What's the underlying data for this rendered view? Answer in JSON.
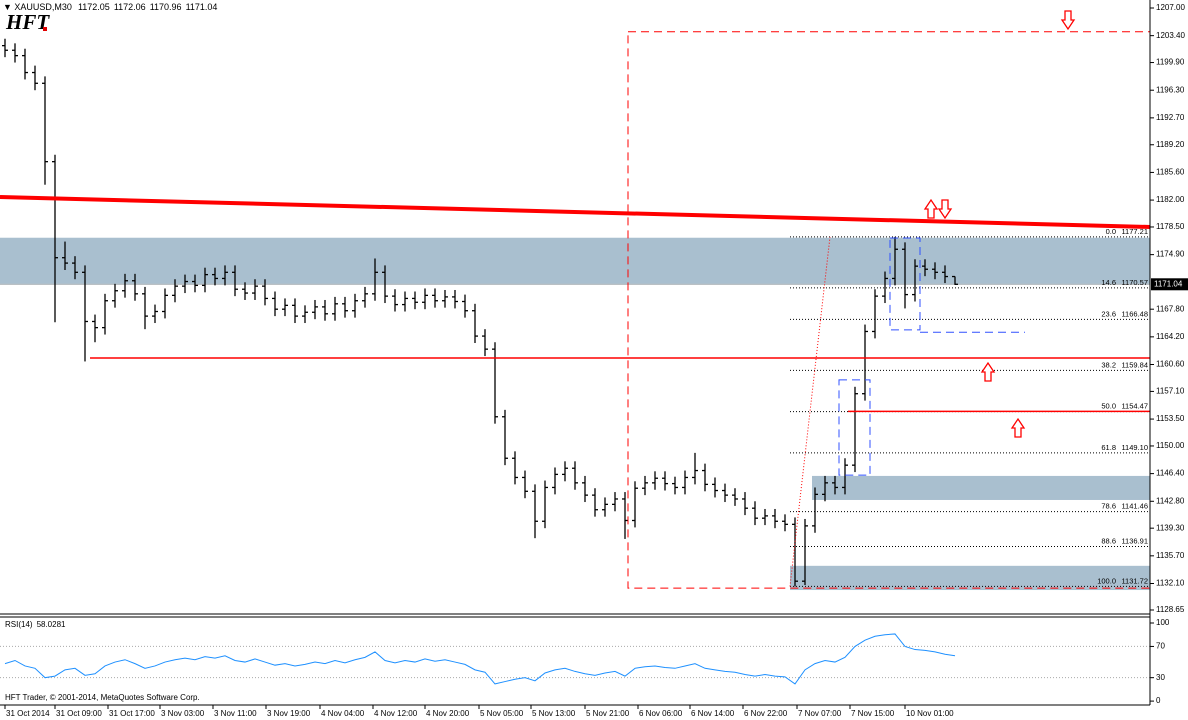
{
  "chart_data": {
    "type": "ohlc",
    "symbol": "XAUUSD,M30",
    "logo": "HFT",
    "copyright": "HFT Trader, © 2001-2014, MetaQuotes Software Corp.",
    "color": "#000000",
    "open": [
      1202.1,
      1201.5,
      1200.8,
      1198.6,
      1197.2,
      1187.0,
      1174.5,
      1173.8,
      1172.6,
      1166.2,
      1165.4,
      1168.9,
      1170.2,
      1171.5,
      1169.8,
      1166.9,
      1167.5,
      1169.6,
      1170.8,
      1171.4,
      1170.9,
      1172.3,
      1171.8,
      1172.6,
      1170.4,
      1169.9,
      1170.8,
      1169.2,
      1167.8,
      1168.3,
      1166.9,
      1167.4,
      1168.1,
      1167.2,
      1168.5,
      1167.6,
      1168.9,
      1169.8,
      1172.6,
      1169.5,
      1168.4,
      1169.2,
      1168.7,
      1169.6,
      1168.9,
      1169.4,
      1168.8,
      1167.6,
      1164.3,
      1162.6,
      1153.8,
      1148.4,
      1145.9,
      1144.1,
      1140.2,
      1144.6,
      1146.3,
      1147.1,
      1145.2,
      1143.6,
      1141.7,
      1142.4,
      1143.1,
      1140.3,
      1144.5,
      1145.2,
      1145.8,
      1145.1,
      1144.6,
      1145.9,
      1146.8,
      1145.0,
      1144.2,
      1143.6,
      1143.1,
      1141.9,
      1140.6,
      1140.9,
      1140.2,
      1139.8,
      1132.4,
      1139.6,
      1143.7,
      1145.2,
      1144.6,
      1147.5,
      1156.8,
      1164.9,
      1169.5,
      1171.8,
      1175.6,
      1169.7,
      1173.4,
      1173.0,
      1172.6,
      1172.05
    ],
    "high": [
      1203.0,
      1202.4,
      1201.7,
      1199.5,
      1198.1,
      1187.9,
      1176.6,
      1174.7,
      1173.5,
      1167.1,
      1169.8,
      1171.1,
      1172.4,
      1172.4,
      1170.7,
      1168.4,
      1170.5,
      1171.7,
      1172.3,
      1172.3,
      1173.2,
      1173.2,
      1173.5,
      1173.5,
      1171.3,
      1171.7,
      1171.7,
      1170.1,
      1169.2,
      1169.2,
      1168.3,
      1169.0,
      1169.0,
      1169.4,
      1169.4,
      1169.8,
      1170.7,
      1174.4,
      1173.5,
      1170.4,
      1170.1,
      1170.1,
      1170.5,
      1170.5,
      1170.3,
      1170.3,
      1169.7,
      1168.5,
      1165.2,
      1163.5,
      1154.7,
      1149.3,
      1146.8,
      1145.0,
      1145.5,
      1147.2,
      1148.0,
      1148.0,
      1146.1,
      1144.5,
      1143.3,
      1144.0,
      1144.0,
      1145.4,
      1146.1,
      1146.7,
      1146.7,
      1146.0,
      1146.8,
      1149.1,
      1147.7,
      1145.9,
      1145.1,
      1144.5,
      1144.0,
      1142.8,
      1141.8,
      1141.8,
      1141.1,
      1140.7,
      1140.5,
      1144.6,
      1146.1,
      1146.1,
      1148.4,
      1157.7,
      1165.8,
      1170.4,
      1172.7,
      1177.21,
      1176.5,
      1174.3,
      1174.3,
      1173.9,
      1173.5,
      1172.06
    ],
    "low": [
      1200.6,
      1199.9,
      1197.7,
      1196.3,
      1184.0,
      1166.1,
      1172.9,
      1171.7,
      1161.0,
      1163.5,
      1164.5,
      1168.0,
      1169.3,
      1168.9,
      1165.2,
      1166.0,
      1166.6,
      1168.7,
      1169.9,
      1170.0,
      1170.0,
      1170.9,
      1170.9,
      1169.5,
      1169.0,
      1169.0,
      1168.3,
      1166.9,
      1166.9,
      1166.0,
      1166.0,
      1166.5,
      1166.3,
      1166.3,
      1166.7,
      1166.7,
      1168.0,
      1168.9,
      1168.6,
      1167.5,
      1167.5,
      1167.8,
      1167.8,
      1168.0,
      1168.0,
      1167.9,
      1166.7,
      1163.4,
      1161.7,
      1152.9,
      1147.5,
      1145.0,
      1143.2,
      1138.0,
      1139.3,
      1143.7,
      1145.4,
      1144.3,
      1142.7,
      1140.8,
      1140.8,
      1141.5,
      1137.9,
      1139.4,
      1143.6,
      1144.3,
      1144.2,
      1143.7,
      1143.7,
      1145.0,
      1144.1,
      1143.3,
      1142.7,
      1142.2,
      1141.0,
      1139.7,
      1139.7,
      1139.3,
      1138.9,
      1131.72,
      1131.9,
      1138.7,
      1142.8,
      1143.7,
      1143.7,
      1146.6,
      1155.9,
      1164.0,
      1168.6,
      1170.9,
      1167.9,
      1168.8,
      1172.1,
      1171.7,
      1171.2,
      1170.96
    ],
    "close": [
      1201.5,
      1200.8,
      1198.6,
      1197.2,
      1187.0,
      1174.5,
      1173.8,
      1172.6,
      1166.2,
      1165.4,
      1168.9,
      1170.2,
      1171.5,
      1169.8,
      1166.9,
      1167.5,
      1169.6,
      1170.8,
      1171.4,
      1170.9,
      1172.3,
      1171.8,
      1172.6,
      1170.4,
      1169.9,
      1170.8,
      1169.2,
      1167.8,
      1168.3,
      1166.9,
      1167.4,
      1168.1,
      1167.2,
      1168.5,
      1167.6,
      1168.9,
      1169.8,
      1172.6,
      1169.5,
      1168.4,
      1169.2,
      1168.7,
      1169.6,
      1168.9,
      1169.4,
      1168.8,
      1167.6,
      1164.3,
      1162.6,
      1153.8,
      1148.4,
      1145.9,
      1144.1,
      1140.2,
      1144.6,
      1146.3,
      1147.1,
      1145.2,
      1143.6,
      1141.7,
      1142.4,
      1143.1,
      1140.3,
      1144.5,
      1145.2,
      1145.8,
      1145.1,
      1144.6,
      1145.9,
      1146.8,
      1145.0,
      1144.2,
      1143.6,
      1143.1,
      1141.9,
      1140.6,
      1140.9,
      1140.2,
      1139.8,
      1132.4,
      1139.6,
      1143.7,
      1145.2,
      1144.6,
      1147.5,
      1156.8,
      1164.9,
      1169.5,
      1171.8,
      1175.6,
      1169.7,
      1173.4,
      1173.0,
      1172.6,
      1172.05,
      1171.04
    ],
    "ylim": [
      1128.13,
      1208.04
    ],
    "yticks": [
      {
        "value": 1207,
        "label": "1207.00"
      },
      {
        "value": 1203.4,
        "label": "1203.40"
      },
      {
        "value": 1199.9,
        "label": "1199.90"
      },
      {
        "value": 1196.3,
        "label": "1196.30"
      },
      {
        "value": 1192.7,
        "label": "1192.70"
      },
      {
        "value": 1189.2,
        "label": "1189.20"
      },
      {
        "value": 1185.6,
        "label": "1185.60"
      },
      {
        "value": 1182,
        "label": "1182.00"
      },
      {
        "value": 1178.5,
        "label": "1178.50"
      },
      {
        "value": 1174.9,
        "label": "1174.90"
      },
      {
        "value": 1167.8,
        "label": "1167.80"
      },
      {
        "value": 1164.2,
        "label": "1164.20"
      },
      {
        "value": 1160.6,
        "label": "1160.60"
      },
      {
        "value": 1157.1,
        "label": "1157.10"
      },
      {
        "value": 1153.5,
        "label": "1153.50"
      },
      {
        "value": 1150,
        "label": "1150.00"
      },
      {
        "value": 1146.4,
        "label": "1146.40"
      },
      {
        "value": 1142.8,
        "label": "1142.80"
      },
      {
        "value": 1139.3,
        "label": "1139.30"
      },
      {
        "value": 1135.7,
        "label": "1135.70"
      },
      {
        "value": 1132.1,
        "label": "1132.10"
      },
      {
        "value": 1128.65,
        "label": "1128.65"
      }
    ],
    "xticks": [
      {
        "value": 0,
        "label": "31 Oct 2014"
      },
      {
        "value": 5,
        "label": "31 Oct 09:00"
      },
      {
        "value": 10.3,
        "label": "31 Oct 17:00"
      },
      {
        "value": 15.5,
        "label": "3 Nov 03:00"
      },
      {
        "value": 20.8,
        "label": "3 Nov 11:00"
      },
      {
        "value": 26.1,
        "label": "3 Nov 19:00"
      },
      {
        "value": 31.5,
        "label": "4 Nov 04:00"
      },
      {
        "value": 36.8,
        "label": "4 Nov 12:00"
      },
      {
        "value": 42,
        "label": "4 Nov 20:00"
      },
      {
        "value": 47.4,
        "label": "5 Nov 05:00"
      },
      {
        "value": 52.6,
        "label": "5 Nov 13:00"
      },
      {
        "value": 58,
        "label": "5 Nov 21:00"
      },
      {
        "value": 63.3,
        "label": "6 Nov 06:00"
      },
      {
        "value": 68.5,
        "label": "6 Nov 14:00"
      },
      {
        "value": 73.8,
        "label": "6 Nov 22:00"
      },
      {
        "value": 79.2,
        "label": "7 Nov 07:00"
      },
      {
        "value": 84.5,
        "label": "7 Nov 15:00"
      },
      {
        "value": 90,
        "label": "10 Nov 01:00"
      }
    ],
    "bid_line_color": "#c0c0c0",
    "shapes": [
      {
        "shape": "zone",
        "x": [
          -0.5,
          114.5
        ],
        "y": [
          1170.95,
          1177.1
        ],
        "color": "#a9bfcf"
      },
      {
        "shape": "zone",
        "x": [
          80.7,
          114.5
        ],
        "y": [
          1142.97,
          1146.1
        ],
        "color": "#a9bfcf"
      },
      {
        "shape": "zone",
        "x": [
          78.5,
          114.5
        ],
        "y": [
          1131.25,
          1134.4
        ],
        "color": "#a9bfcf"
      },
      {
        "shape": "rect",
        "x": [
          62.3,
          114.5
        ],
        "y": [
          1131.5,
          1203.9
        ],
        "color": "#ff0000",
        "style": "dashed"
      },
      {
        "shape": "rect",
        "x": [
          83.4,
          86.5
        ],
        "y": [
          1146.2,
          1158.6
        ],
        "color": "#3050ff",
        "style": "dashed"
      },
      {
        "shape": "rect",
        "x": [
          88.5,
          91.5
        ],
        "y": [
          1165.1,
          1177.07
        ],
        "color": "#3050ff",
        "style": "dashed"
      },
      {
        "shape": "line",
        "x": [
          91.5,
          102
        ],
        "y": [
          1164.8,
          1164.8
        ],
        "color": "#3050ff",
        "style": "dashed"
      },
      {
        "shape": "line",
        "x": [
          -0.5,
          114.5
        ],
        "y": [
          1182.4,
          1178.5
        ],
        "color": "#ff0000",
        "width": 4
      },
      {
        "shape": "line",
        "x": [
          8.5,
          114.5
        ],
        "y": [
          1161.45,
          1161.45
        ],
        "color": "#ff0000",
        "width": 1.5
      },
      {
        "shape": "line",
        "x": [
          84.3,
          114.5
        ],
        "y": [
          1154.5,
          1154.5
        ],
        "color": "#ff0000",
        "width": 1.5
      },
      {
        "shape": "line",
        "x": [
          78.5,
          82.5
        ],
        "y": [
          1131.72,
          1177.21
        ],
        "color": "#ff0000",
        "style": "dotted"
      }
    ],
    "fibonacci": {
      "x0": 78.5,
      "color": "#000000",
      "levels": [
        {
          "level": "0.0",
          "price": {
            "value": 1177.21,
            "label": "1177.21"
          }
        },
        {
          "level": "14.6",
          "price": {
            "value": 1170.57,
            "label": "1170.57"
          }
        },
        {
          "level": "23.6",
          "price": {
            "value": 1166.48,
            "label": "1166.48"
          }
        },
        {
          "level": "38.2",
          "price": {
            "value": 1159.84,
            "label": "1159.84"
          }
        },
        {
          "level": "50.0",
          "price": {
            "value": 1154.47,
            "label": "1154.47"
          }
        },
        {
          "level": "61.8",
          "price": {
            "value": 1149.1,
            "label": "1149.10"
          }
        },
        {
          "level": "78.6",
          "price": {
            "value": 1141.46,
            "label": "1141.46"
          }
        },
        {
          "level": "88.6",
          "price": {
            "value": 1136.91,
            "label": "1136.91"
          }
        },
        {
          "level": "100.0",
          "price": {
            "value": 1131.72,
            "label": "1131.72"
          }
        }
      ]
    },
    "indicator": {
      "name": "RSI(14)",
      "color": "#1e90ff",
      "ylim": [
        -5,
        107.7
      ],
      "yticks": [
        100,
        70,
        30,
        0
      ],
      "levels": [
        70,
        30
      ],
      "values": [
        48,
        52,
        45,
        42,
        30,
        32,
        40,
        42,
        33,
        35,
        45,
        50,
        53,
        48,
        42,
        45,
        50,
        53,
        55,
        53,
        57,
        55,
        58,
        52,
        50,
        54,
        50,
        46,
        48,
        45,
        47,
        50,
        48,
        52,
        49,
        53,
        56,
        63,
        52,
        49,
        52,
        50,
        54,
        51,
        53,
        50,
        47,
        40,
        37,
        22,
        25,
        28,
        30,
        26,
        36,
        40,
        42,
        38,
        35,
        33,
        36,
        38,
        32,
        42,
        44,
        45,
        43,
        42,
        45,
        48,
        42,
        40,
        38,
        37,
        34,
        32,
        34,
        32,
        31,
        22,
        40,
        48,
        52,
        50,
        56,
        70,
        78,
        83,
        85,
        86,
        70,
        66,
        65,
        63,
        60,
        58.0281
      ]
    }
  }
}
